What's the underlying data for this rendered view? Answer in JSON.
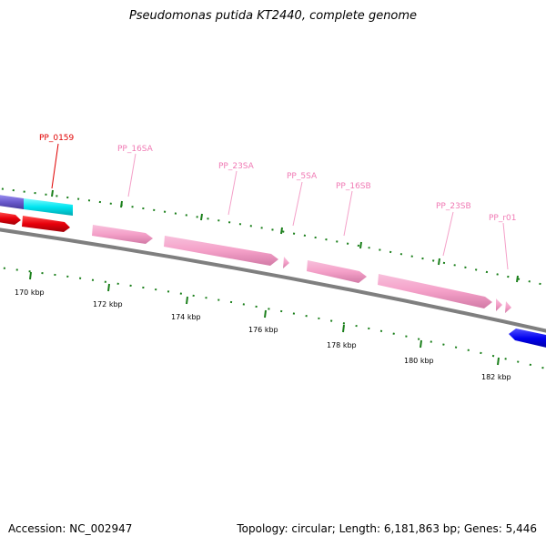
{
  "title": "Pseudomonas putida KT2440, complete genome",
  "footer": {
    "accession": "Accession: NC_002947",
    "summary": "Topology: circular; Length: 6,181,863 bp; Genes: 5,446"
  },
  "colors": {
    "backbone": "#7f7f7f",
    "rrna": "#f4a0c8",
    "rrna_label": "#f07ab4",
    "cds_forward": "#e8000b",
    "cds_highlight": "#00e5f0",
    "cds_violet": "#6a5acd",
    "cds_reverse": "#0000ee",
    "tick": "#1a7f1a",
    "highlight_label": "#e00000"
  },
  "scale": {
    "labels": [
      "170 kbp",
      "172 kbp",
      "174 kbp",
      "176 kbp",
      "178 kbp",
      "180 kbp",
      "182 kbp"
    ]
  },
  "features": [
    {
      "name": "PP_0159",
      "type": "CDS",
      "highlight": true
    },
    {
      "name": "PP_16SA",
      "type": "rRNA"
    },
    {
      "name": "PP_23SA",
      "type": "rRNA"
    },
    {
      "name": "PP_5SA",
      "type": "rRNA"
    },
    {
      "name": "PP_16SB",
      "type": "rRNA"
    },
    {
      "name": "PP_23SB",
      "type": "rRNA"
    },
    {
      "name": "PP_r01",
      "type": "rRNA"
    }
  ]
}
